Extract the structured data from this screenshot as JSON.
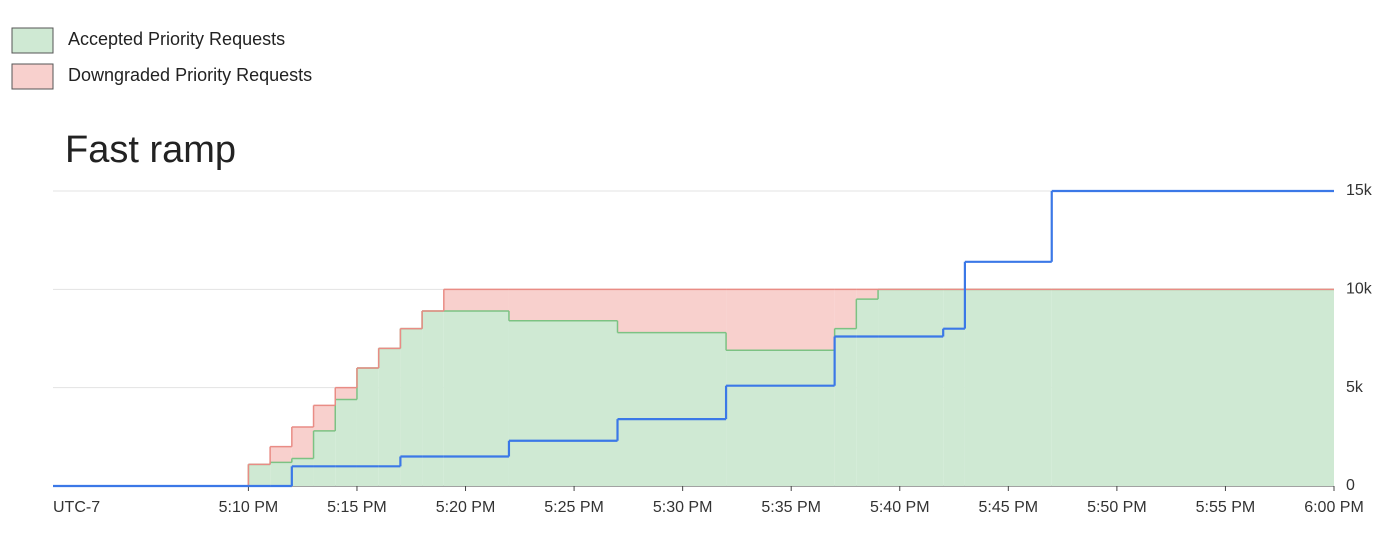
{
  "chart_data": {
    "type": "step-area",
    "title": "Fast ramp",
    "timezone_label": "UTC-7",
    "x": [
      1,
      10,
      11,
      12,
      13,
      14,
      15,
      16,
      17,
      18,
      19,
      22,
      27,
      32,
      37,
      38,
      39,
      42,
      43,
      47,
      60
    ],
    "xlim": [
      1,
      60
    ],
    "xticks": [
      {
        "value": 10,
        "label": "5:10 PM"
      },
      {
        "value": 15,
        "label": "5:15 PM"
      },
      {
        "value": 20,
        "label": "5:20 PM"
      },
      {
        "value": 25,
        "label": "5:25 PM"
      },
      {
        "value": 30,
        "label": "5:30 PM"
      },
      {
        "value": 35,
        "label": "5:35 PM"
      },
      {
        "value": 40,
        "label": "5:40 PM"
      },
      {
        "value": 45,
        "label": "5:45 PM"
      },
      {
        "value": 50,
        "label": "5:50 PM"
      },
      {
        "value": 55,
        "label": "5:55 PM"
      },
      {
        "value": 60,
        "label": "6:00 PM"
      }
    ],
    "ylim": [
      0,
      15000
    ],
    "yticks": [
      0,
      {
        "value": 5000,
        "label": "5k"
      },
      {
        "value": 10000,
        "label": "10k"
      },
      {
        "value": 15000,
        "label": "15k"
      }
    ],
    "grid": true,
    "series": [
      {
        "name": "Accepted Priority Requests",
        "color": "#cfe9d3",
        "stroke": "#7cc283",
        "stacked": true,
        "values": [
          0,
          1100,
          1200,
          1400,
          2800,
          4400,
          6000,
          7000,
          8000,
          8900,
          8900,
          8400,
          7800,
          6900,
          8000,
          9500,
          10000,
          10000,
          10000,
          10000,
          10000
        ]
      },
      {
        "name": "Downgraded Priority Requests",
        "color": "#f8d0cd",
        "stroke": "#e98c85",
        "stacked": true,
        "values": [
          0,
          0,
          800,
          1600,
          1300,
          600,
          0,
          0,
          0,
          0,
          1100,
          1600,
          2200,
          3100,
          2000,
          500,
          0,
          0,
          0,
          0,
          0
        ]
      },
      {
        "color": "#3b78e7",
        "stacked": false,
        "values": [
          0,
          0,
          0,
          1000,
          1000,
          1000,
          1000,
          1000,
          1500,
          1500,
          1500,
          2300,
          3400,
          5100,
          7600,
          7600,
          7600,
          8000,
          11400,
          15000,
          15000
        ]
      }
    ]
  }
}
